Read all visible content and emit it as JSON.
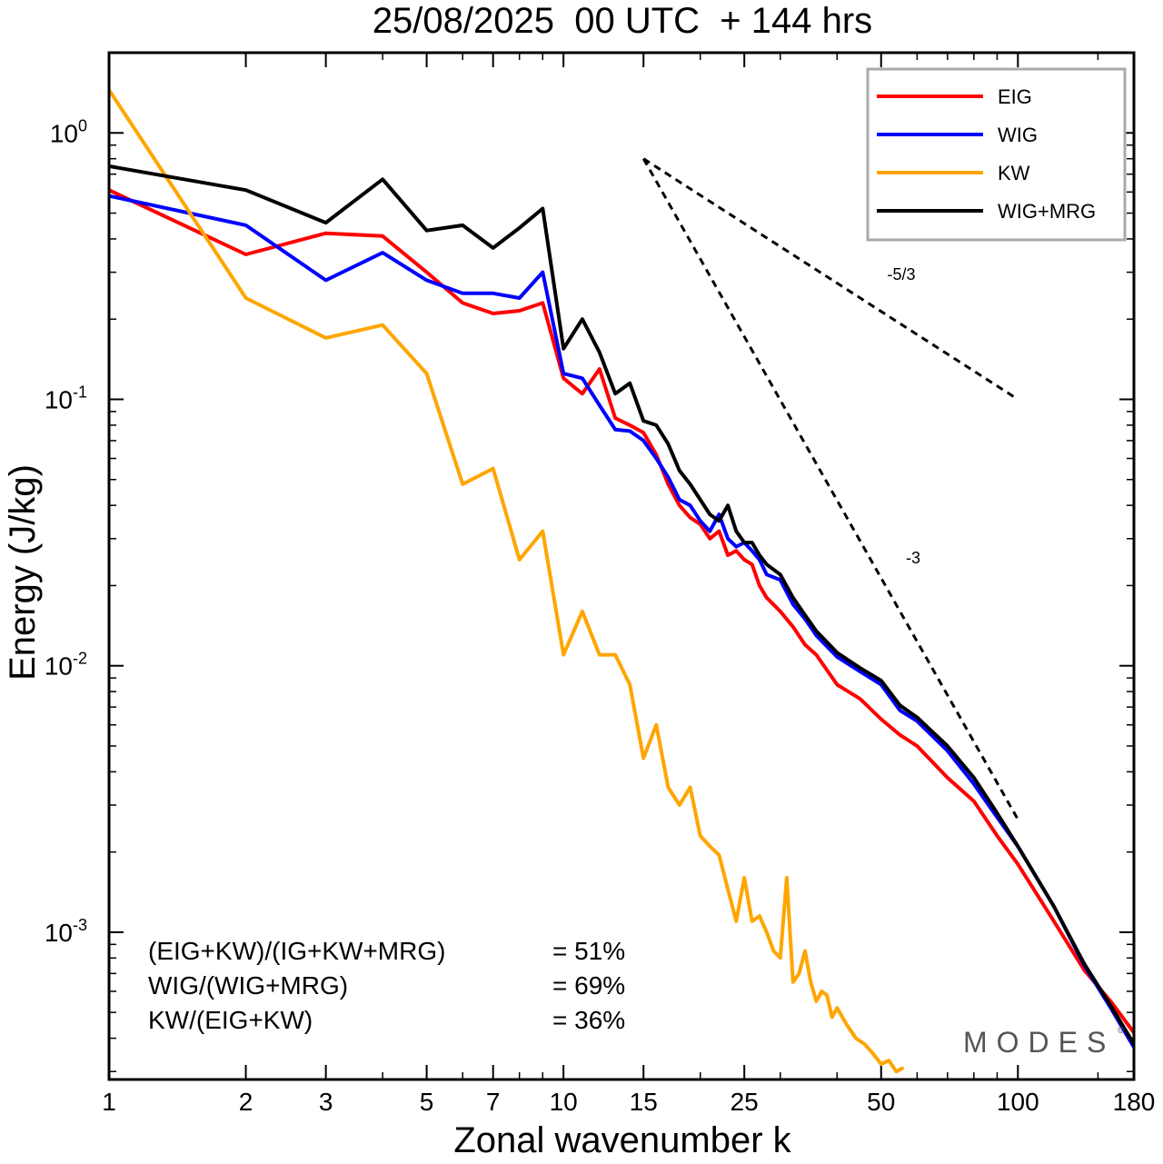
{
  "chart_data": {
    "type": "line",
    "title": "25/08/2025  00 UTC  + 144 hrs",
    "xlabel": "Zonal wavenumber k",
    "ylabel": "Energy (J/kg)",
    "xscale": "log",
    "yscale": "log",
    "xlim": [
      1,
      180
    ],
    "ylim": [
      0.00028,
      2.0
    ],
    "x_ticks": [
      1,
      2,
      3,
      5,
      7,
      10,
      15,
      25,
      50,
      100,
      180
    ],
    "x_tick_labels": [
      "1",
      "2",
      "3",
      "5",
      "7",
      "10",
      "15",
      "25",
      "50",
      "100",
      "180"
    ],
    "y_ticks": [
      {
        "value": 1.0,
        "base": "10",
        "exp": "0"
      },
      {
        "value": 0.1,
        "base": "10",
        "exp": "-1"
      },
      {
        "value": 0.01,
        "base": "10",
        "exp": "-2"
      },
      {
        "value": 0.001,
        "base": "10",
        "exp": "-3"
      }
    ],
    "legend_position": "top-right",
    "series": [
      {
        "name": "EIG",
        "color": "#ff0000",
        "x": [
          1,
          2,
          3,
          4,
          5,
          6,
          7,
          8,
          9,
          10,
          11,
          12,
          13,
          14,
          15,
          16,
          17,
          18,
          19,
          20,
          21,
          22,
          23,
          24,
          25,
          26,
          27,
          28,
          30,
          32,
          34,
          36,
          40,
          45,
          50,
          55,
          60,
          70,
          80,
          90,
          100,
          120,
          140,
          160,
          180
        ],
        "y": [
          0.61,
          0.35,
          0.42,
          0.41,
          0.3,
          0.23,
          0.21,
          0.215,
          0.23,
          0.12,
          0.105,
          0.13,
          0.085,
          0.08,
          0.075,
          0.062,
          0.048,
          0.04,
          0.036,
          0.034,
          0.03,
          0.032,
          0.026,
          0.027,
          0.025,
          0.024,
          0.02,
          0.018,
          0.016,
          0.014,
          0.012,
          0.011,
          0.0085,
          0.0075,
          0.0063,
          0.0055,
          0.005,
          0.0038,
          0.0031,
          0.0023,
          0.0018,
          0.0011,
          0.00072,
          0.00055,
          0.00042
        ]
      },
      {
        "name": "WIG",
        "color": "#0000ff",
        "x": [
          1,
          2,
          3,
          4,
          5,
          6,
          7,
          8,
          9,
          10,
          11,
          12,
          13,
          14,
          15,
          16,
          17,
          18,
          19,
          20,
          21,
          22,
          23,
          24,
          25,
          26,
          27,
          28,
          30,
          32,
          34,
          36,
          40,
          45,
          50,
          55,
          60,
          70,
          80,
          90,
          100,
          120,
          140,
          160,
          180
        ],
        "y": [
          0.58,
          0.45,
          0.28,
          0.355,
          0.28,
          0.25,
          0.25,
          0.24,
          0.3,
          0.125,
          0.12,
          0.095,
          0.077,
          0.076,
          0.07,
          0.06,
          0.051,
          0.042,
          0.04,
          0.035,
          0.032,
          0.037,
          0.03,
          0.028,
          0.029,
          0.027,
          0.025,
          0.022,
          0.021,
          0.017,
          0.015,
          0.013,
          0.0108,
          0.0095,
          0.0085,
          0.0068,
          0.0062,
          0.0048,
          0.0036,
          0.0027,
          0.0021,
          0.00125,
          0.00075,
          0.00052,
          0.00037
        ]
      },
      {
        "name": "KW",
        "color": "#ffa500",
        "x": [
          1,
          2,
          3,
          4,
          5,
          6,
          7,
          8,
          9,
          10,
          11,
          12,
          13,
          14,
          15,
          16,
          17,
          18,
          19,
          20,
          21,
          22,
          23,
          24,
          25,
          26,
          27,
          28,
          29,
          30,
          31,
          32,
          33,
          34,
          35,
          36,
          37,
          38,
          39,
          40,
          42,
          44,
          46,
          48,
          50,
          52,
          54,
          56
        ],
        "y": [
          1.45,
          0.24,
          0.17,
          0.19,
          0.125,
          0.048,
          0.055,
          0.025,
          0.032,
          0.011,
          0.016,
          0.011,
          0.011,
          0.0085,
          0.0045,
          0.006,
          0.0035,
          0.003,
          0.0035,
          0.0023,
          0.0021,
          0.00195,
          0.00145,
          0.0011,
          0.0016,
          0.0011,
          0.00115,
          0.001,
          0.00085,
          0.0008,
          0.0016,
          0.00065,
          0.0007,
          0.00085,
          0.00065,
          0.00055,
          0.0006,
          0.00058,
          0.00048,
          0.00052,
          0.00045,
          0.0004,
          0.00038,
          0.00035,
          0.00032,
          0.00033,
          0.0003,
          0.00031
        ]
      },
      {
        "name": "WIG+MRG",
        "color": "#000000",
        "x": [
          1,
          2,
          3,
          4,
          5,
          6,
          7,
          8,
          9,
          10,
          11,
          12,
          13,
          14,
          15,
          16,
          17,
          18,
          19,
          20,
          21,
          22,
          23,
          24,
          25,
          26,
          27,
          28,
          30,
          32,
          34,
          36,
          40,
          45,
          50,
          55,
          60,
          70,
          80,
          90,
          100,
          120,
          140,
          160,
          180
        ],
        "y": [
          0.75,
          0.61,
          0.46,
          0.67,
          0.43,
          0.45,
          0.37,
          0.44,
          0.52,
          0.155,
          0.2,
          0.15,
          0.105,
          0.115,
          0.083,
          0.08,
          0.068,
          0.054,
          0.048,
          0.042,
          0.037,
          0.035,
          0.04,
          0.032,
          0.029,
          0.029,
          0.026,
          0.024,
          0.022,
          0.018,
          0.0155,
          0.0135,
          0.0112,
          0.0098,
          0.0088,
          0.0071,
          0.0064,
          0.005,
          0.0038,
          0.0028,
          0.0021,
          0.00125,
          0.00076,
          0.00053,
          0.00038
        ]
      }
    ],
    "reference_lines": [
      {
        "label": "-5/3",
        "slope": -1.6667,
        "x": [
          15,
          100
        ],
        "y": [
          0.8,
          0.1
        ]
      },
      {
        "label": "-3",
        "slope": -3,
        "x": [
          15,
          100
        ],
        "y": [
          0.8,
          0.00265
        ]
      }
    ],
    "annotations": [
      {
        "label": "(EIG+KW)/(IG+KW+MRG)",
        "value": "= 51%"
      },
      {
        "label": "WIG/(WIG+MRG)",
        "value": "= 69%"
      },
      {
        "label": "KW/(EIG+KW)",
        "value": "= 36%"
      }
    ],
    "watermark": "MODES",
    "watermark_mark": "©"
  }
}
